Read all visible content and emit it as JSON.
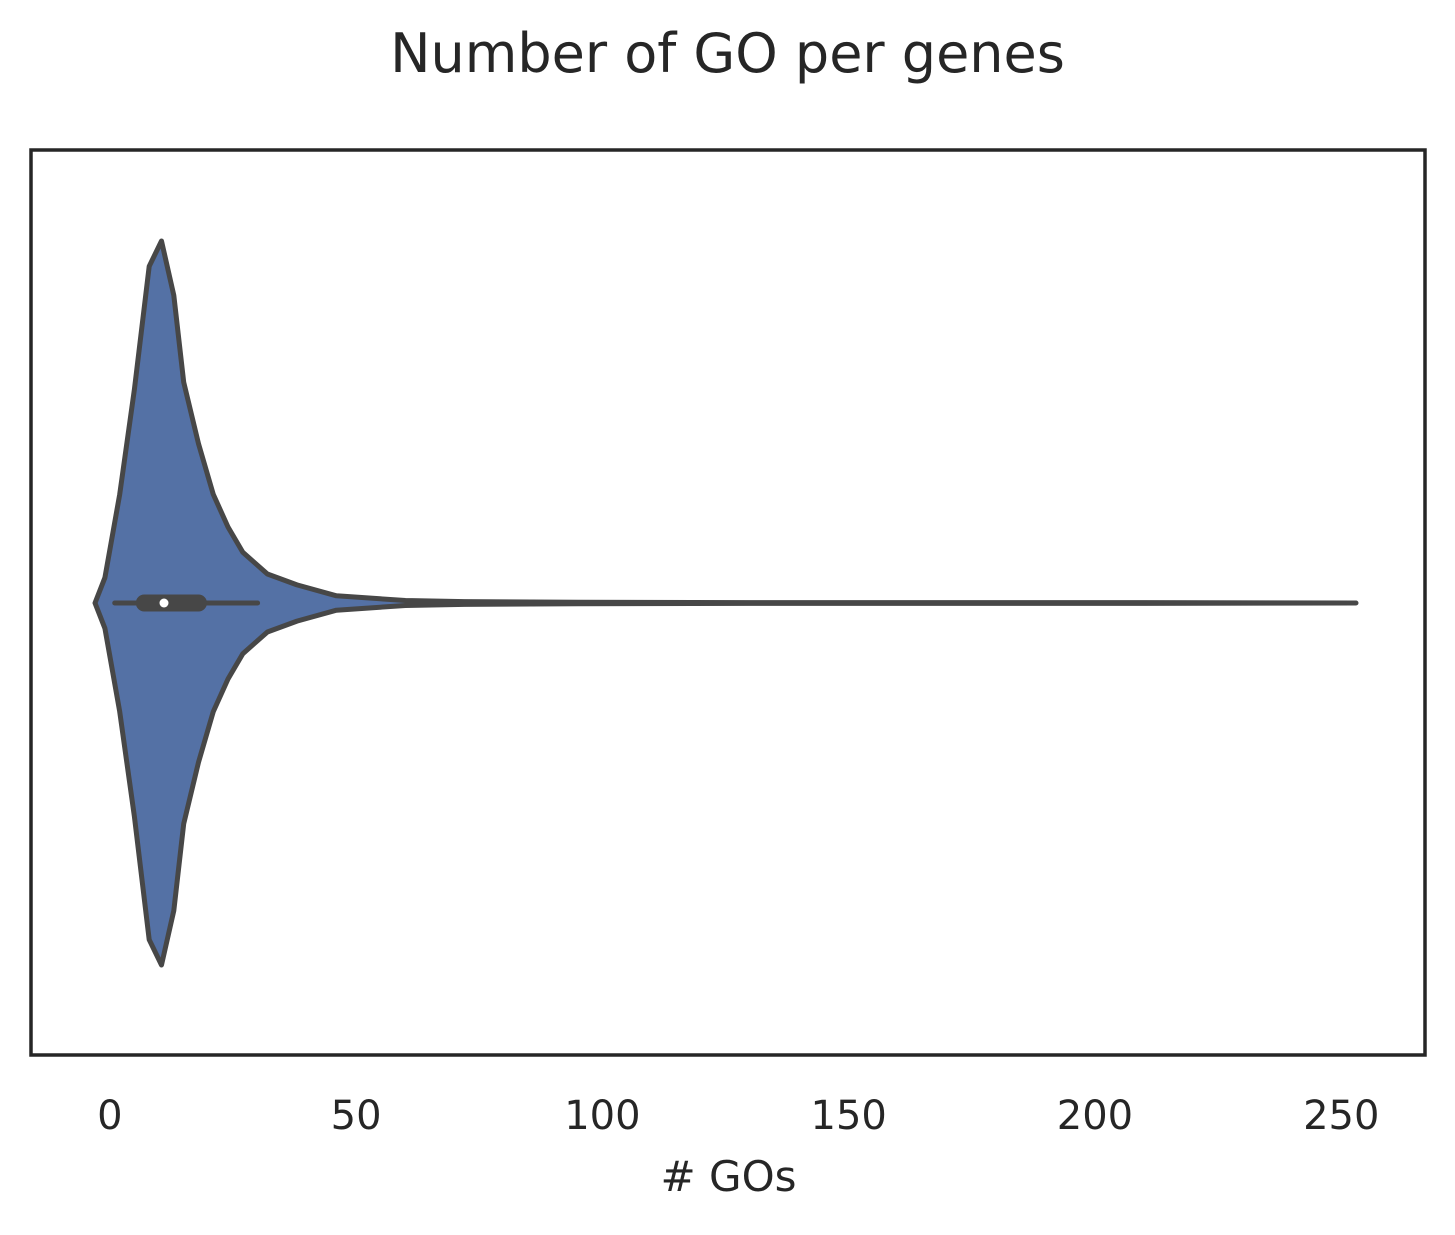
{
  "chart_data": {
    "type": "violin",
    "title": "Number of GO per genes",
    "xlabel": "# GOs",
    "ylabel": "",
    "xlim": [
      -16,
      267
    ],
    "xticks": [
      0,
      50,
      100,
      150,
      200,
      250
    ],
    "grid": false,
    "colors": {
      "fill": "#5471a5",
      "stroke": "#474747",
      "frame": "#262626",
      "median": "#ffffff"
    },
    "box": {
      "whisker_low": 1,
      "q1": 7,
      "median": 11,
      "q3": 18,
      "whisker_high": 30
    },
    "density": {
      "x": [
        -3,
        -1,
        2,
        5,
        8,
        10.5,
        13,
        15,
        18,
        21,
        24,
        27,
        32,
        38,
        46,
        60,
        72,
        95,
        130,
        200,
        253
      ],
      "height": [
        0,
        0.07,
        0.3,
        0.59,
        0.93,
        1.0,
        0.85,
        0.61,
        0.44,
        0.3,
        0.21,
        0.14,
        0.08,
        0.05,
        0.02,
        0.007,
        0.004,
        0.002,
        0.001,
        0.001,
        0
      ]
    }
  }
}
